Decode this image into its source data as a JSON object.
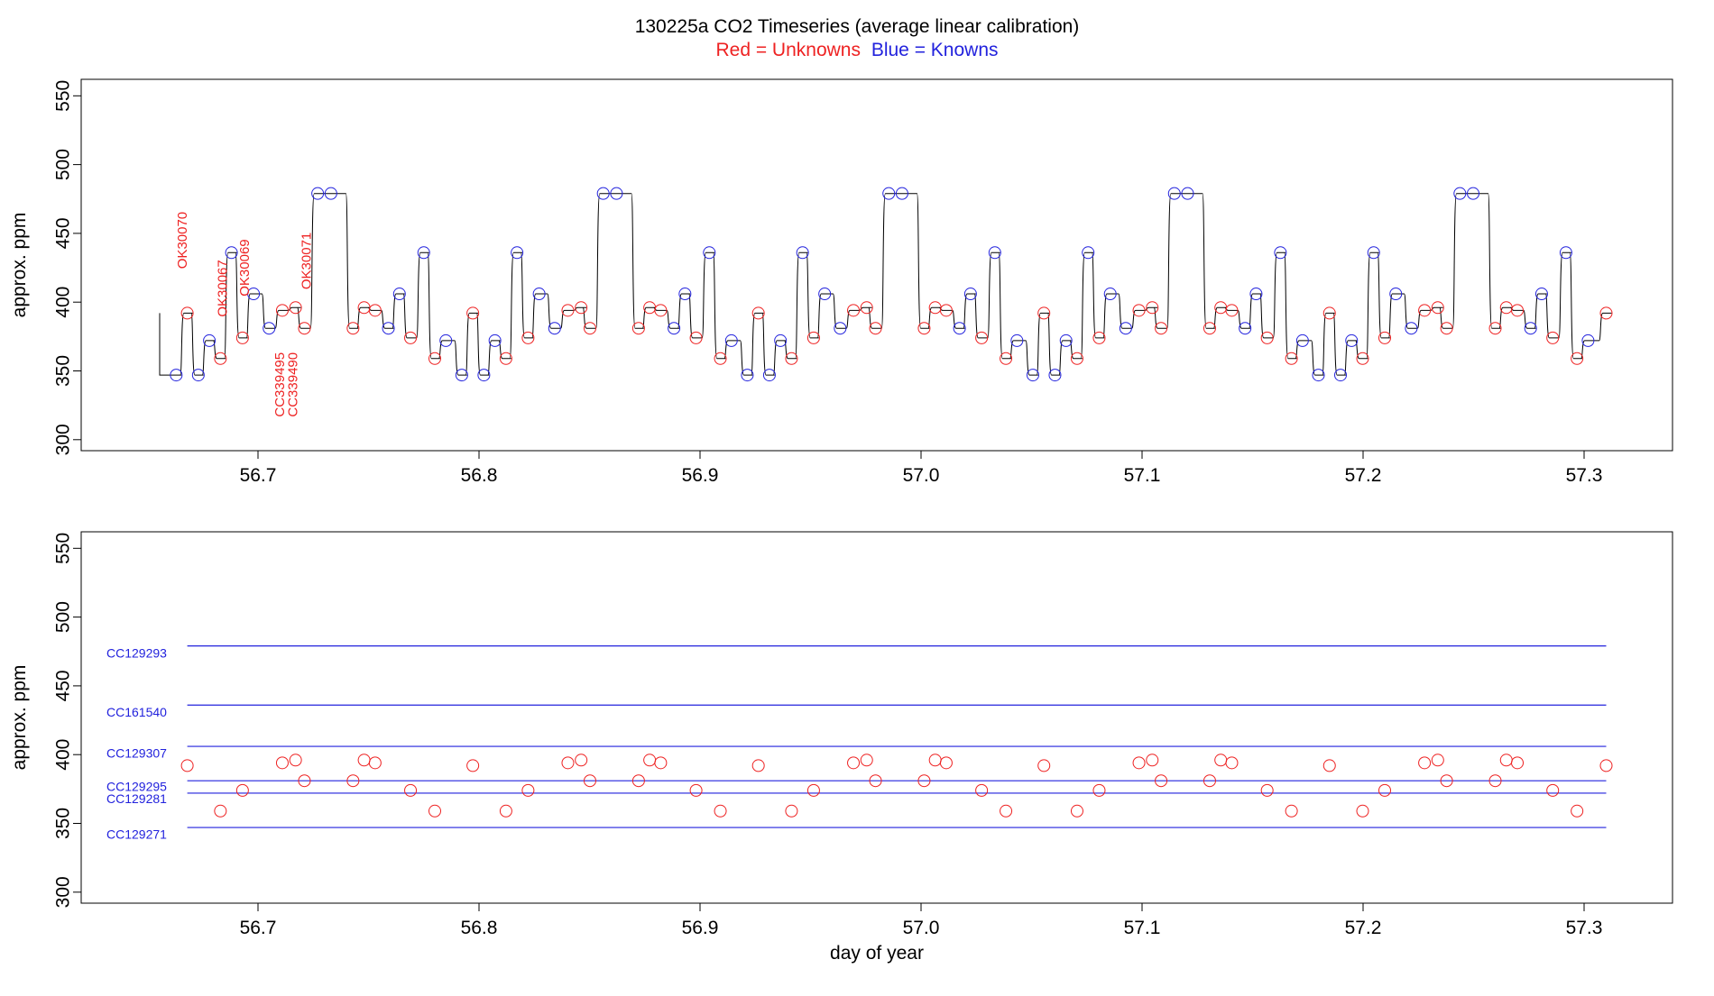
{
  "title": {
    "main": "130225a   CO2 Timeseries (average linear calibration)",
    "legend_red": "Red = Unknowns",
    "legend_blue": "Blue = Knowns"
  },
  "colors": {
    "unknown": "#ee2222",
    "known": "#2222dd",
    "line": "#000000"
  },
  "chart_data": [
    {
      "type": "line",
      "panel": "top",
      "xlabel": "",
      "ylabel": "approx. ppm",
      "xlim": [
        56.62,
        57.34
      ],
      "ylim": [
        292,
        562
      ],
      "x_ticks": [
        "56.7",
        "56.8",
        "56.9",
        "57.0",
        "57.1",
        "57.2",
        "57.3"
      ],
      "y_ticks": [
        "300",
        "350",
        "400",
        "450",
        "500",
        "550"
      ],
      "cycle_start": 56.663,
      "cycle_period": 0.1292,
      "cycle_count": 5,
      "cycle_points": [
        {
          "dx": 0.0,
          "y": 347,
          "kind": "known"
        },
        {
          "dx": 0.005,
          "y": 392,
          "kind": "unknown"
        },
        {
          "dx": 0.01,
          "y": 347,
          "kind": "known"
        },
        {
          "dx": 0.015,
          "y": 372,
          "kind": "known"
        },
        {
          "dx": 0.02,
          "y": 359,
          "kind": "unknown"
        },
        {
          "dx": 0.025,
          "y": 436,
          "kind": "known"
        },
        {
          "dx": 0.03,
          "y": 374,
          "kind": "unknown"
        },
        {
          "dx": 0.035,
          "y": 406,
          "kind": "known"
        },
        {
          "dx": 0.042,
          "y": 381,
          "kind": "known"
        },
        {
          "dx": 0.048,
          "y": 394,
          "kind": "unknown"
        },
        {
          "dx": 0.054,
          "y": 396,
          "kind": "unknown"
        },
        {
          "dx": 0.058,
          "y": 381,
          "kind": "unknown"
        },
        {
          "dx": 0.064,
          "y": 479,
          "kind": "known"
        },
        {
          "dx": 0.07,
          "y": 479,
          "kind": "known"
        },
        {
          "dx": 0.08,
          "y": 381,
          "kind": "unknown"
        },
        {
          "dx": 0.085,
          "y": 396,
          "kind": "unknown"
        },
        {
          "dx": 0.09,
          "y": 394,
          "kind": "unknown"
        },
        {
          "dx": 0.096,
          "y": 381,
          "kind": "known"
        },
        {
          "dx": 0.101,
          "y": 406,
          "kind": "known"
        },
        {
          "dx": 0.106,
          "y": 374,
          "kind": "unknown"
        },
        {
          "dx": 0.112,
          "y": 436,
          "kind": "known"
        },
        {
          "dx": 0.117,
          "y": 359,
          "kind": "unknown"
        },
        {
          "dx": 0.122,
          "y": 372,
          "kind": "known"
        }
      ],
      "final_point": {
        "x": 57.31,
        "y": 392,
        "kind": "unknown"
      },
      "annotations": [
        {
          "text": "OK30070",
          "x": 56.666,
          "y": 445
        },
        {
          "text": "OK30067",
          "x": 56.684,
          "y": 410
        },
        {
          "text": "OK30069",
          "x": 56.694,
          "y": 425
        },
        {
          "text": "OK30071",
          "x": 56.722,
          "y": 430
        },
        {
          "text": "CC339495",
          "x": 56.71,
          "y": 340
        },
        {
          "text": "CC339490",
          "x": 56.716,
          "y": 340
        }
      ]
    },
    {
      "type": "scatter",
      "panel": "bottom",
      "xlabel": "day of year",
      "ylabel": "approx. ppm",
      "xlim": [
        56.62,
        57.34
      ],
      "ylim": [
        292,
        562
      ],
      "x_ticks": [
        "56.7",
        "56.8",
        "56.9",
        "57.0",
        "57.1",
        "57.2",
        "57.3"
      ],
      "y_ticks": [
        "300",
        "350",
        "400",
        "450",
        "500",
        "550"
      ],
      "reference_lines": [
        {
          "name": "CC129293",
          "y": 479,
          "label_y": 474
        },
        {
          "name": "CC161540",
          "y": 436,
          "label_y": 431
        },
        {
          "name": "CC129307",
          "y": 406,
          "label_y": 401
        },
        {
          "name": "CC129295",
          "y": 381,
          "label_y": 377
        },
        {
          "name": "CC129281",
          "y": 372,
          "label_y": 368
        },
        {
          "name": "CC129271",
          "y": 347,
          "label_y": 342
        }
      ],
      "line_x_range": [
        56.668,
        57.31
      ]
    }
  ]
}
